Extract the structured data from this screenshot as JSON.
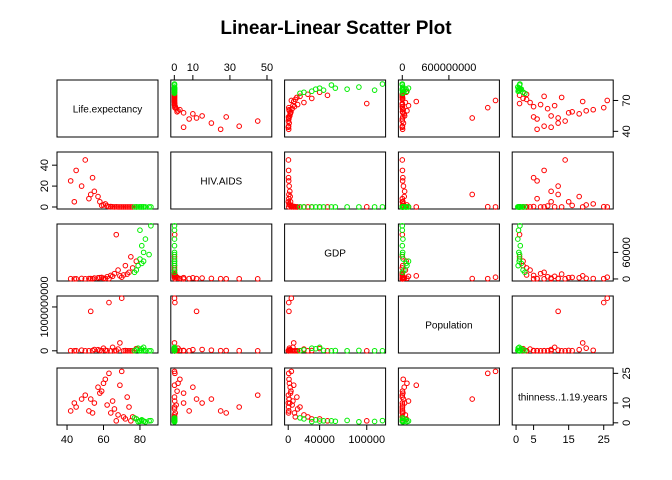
{
  "chart_data": {
    "type": "scatter-matrix",
    "title": "Linear-Linear Scatter Plot",
    "variables": [
      {
        "name": "Life.expectancy",
        "lim": [
          34.5,
          89.9
        ],
        "xticks": [
          40,
          60,
          80
        ],
        "yticks": [
          40,
          70
        ]
      },
      {
        "name": "HIV.AIDS",
        "lim": [
          -1.9,
          52.6
        ],
        "xticks": [
          0,
          10,
          30,
          50
        ],
        "yticks": [
          0,
          20,
          40
        ]
      },
      {
        "name": "GDP",
        "lim": [
          -4600,
          124000
        ],
        "xticks": [
          0,
          40000,
          100000
        ],
        "yticks": [
          0,
          60000
        ]
      },
      {
        "name": "Population",
        "lim": [
          -50000000,
          1250000000
        ],
        "xticks": [
          0,
          600000000
        ],
        "yticks": [
          0,
          1000000000
        ]
      },
      {
        "name": "thinness..1.19.years",
        "lim": [
          -1.1,
          27.7
        ],
        "xticks": [
          0,
          5,
          15,
          25
        ],
        "yticks": [
          0,
          10,
          25
        ]
      }
    ],
    "groups": [
      {
        "color": "#ff0000",
        "points": [
          [
            45,
            35,
            500,
            2000000,
            8
          ],
          [
            48,
            20,
            1200,
            15000000,
            12
          ],
          [
            52,
            8,
            800,
            500000,
            6
          ],
          [
            55,
            15,
            2000,
            30000000,
            10
          ],
          [
            58,
            5,
            3000,
            8000000,
            15
          ],
          [
            60,
            2,
            1500,
            60000000,
            20
          ],
          [
            62,
            1,
            5000,
            3000000,
            9
          ],
          [
            64,
            0.5,
            8000,
            200000,
            5
          ],
          [
            66,
            0.1,
            12000,
            1000000,
            7
          ],
          [
            68,
            0.1,
            20000,
            40000000,
            4
          ],
          [
            70,
            0.1,
            4000,
            1200000000,
            26
          ],
          [
            71,
            0.1,
            9000,
            900000,
            3
          ],
          [
            72,
            0.1,
            30000,
            5000000,
            2
          ],
          [
            74,
            0.1,
            15000,
            1250000,
            8
          ],
          [
            75,
            0.1,
            50000,
            200000,
            1
          ],
          [
            63,
            0.3,
            700,
            1100000000,
            25
          ],
          [
            50,
            45,
            300,
            100000,
            14
          ],
          [
            42,
            25,
            600,
            4000000,
            6
          ],
          [
            57,
            10,
            2500,
            25000000,
            18
          ],
          [
            65,
            0.2,
            6000,
            80000000,
            11
          ],
          [
            73,
            0.1,
            11000,
            70000,
            13
          ],
          [
            76,
            0.1,
            25000,
            30000,
            3
          ],
          [
            61,
            3,
            1000,
            12000000,
            22
          ],
          [
            54,
            28,
            400,
            7000000,
            5
          ],
          [
            59,
            1.5,
            3500,
            2500000,
            16
          ],
          [
            67,
            0.2,
            100000,
            300000,
            1
          ],
          [
            78,
            0.1,
            40000,
            50000000,
            2
          ],
          [
            44,
            5,
            200,
            600000,
            10
          ],
          [
            69,
            0.1,
            7000,
            180000000,
            19
          ],
          [
            53,
            12,
            900,
            900000000,
            12
          ]
        ]
      },
      {
        "color": "#00ee00",
        "points": [
          [
            80,
            0.1,
            45000,
            10000000,
            1
          ],
          [
            82,
            0.1,
            60000,
            5000000,
            0.8
          ],
          [
            81,
            0.1,
            75000,
            500000,
            1.2
          ],
          [
            79,
            0.1,
            30000,
            60000000,
            0.6
          ],
          [
            83,
            0.1,
            90000,
            8000000,
            0.5
          ],
          [
            78,
            0.1,
            20000,
            20000000,
            2
          ],
          [
            85,
            0.1,
            55000,
            1000000,
            1
          ],
          [
            80,
            0.1,
            110000,
            400000,
            0.7
          ],
          [
            77,
            0.1,
            15000,
            3000000,
            2.5
          ],
          [
            82,
            0.1,
            40000,
            80000000,
            0.9
          ],
          [
            86,
            0.1,
            120000,
            30000,
            1.1
          ],
          [
            81,
            0.1,
            35000,
            47000000,
            1.5
          ]
        ]
      }
    ]
  }
}
